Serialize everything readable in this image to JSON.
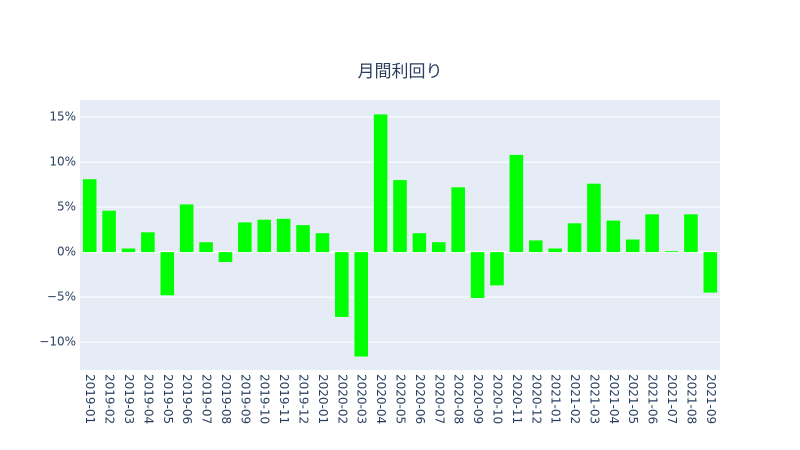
{
  "chart_data": {
    "type": "bar",
    "title": "月間利回り",
    "categories": [
      "2019-01",
      "2019-02",
      "2019-03",
      "2019-04",
      "2019-05",
      "2019-06",
      "2019-07",
      "2019-08",
      "2019-09",
      "2019-10",
      "2019-11",
      "2019-12",
      "2020-01",
      "2020-02",
      "2020-03",
      "2020-04",
      "2020-05",
      "2020-06",
      "2020-07",
      "2020-08",
      "2020-09",
      "2020-10",
      "2020-11",
      "2020-12",
      "2021-01",
      "2021-02",
      "2021-03",
      "2021-04",
      "2021-05",
      "2021-06",
      "2021-07",
      "2021-08",
      "2021-09"
    ],
    "values": [
      8.1,
      4.6,
      0.4,
      2.2,
      -4.8,
      5.3,
      1.1,
      -1.1,
      3.3,
      3.6,
      3.7,
      3.0,
      2.1,
      -7.2,
      -11.6,
      15.3,
      8.0,
      2.1,
      1.1,
      7.2,
      -5.1,
      -3.7,
      10.8,
      1.3,
      0.4,
      3.2,
      7.6,
      3.5,
      1.4,
      4.2,
      0.1,
      4.2,
      -4.5
    ],
    "color": "#00ff00",
    "ylim": [
      -13.1,
      16.9
    ],
    "yticks": [
      {
        "value": -10,
        "label": "−10%"
      },
      {
        "value": -5,
        "label": "−5%"
      },
      {
        "value": 0,
        "label": "0%"
      },
      {
        "value": 5,
        "label": "5%"
      },
      {
        "value": 10,
        "label": "10%"
      },
      {
        "value": 15,
        "label": "15%"
      }
    ],
    "grid": true
  }
}
